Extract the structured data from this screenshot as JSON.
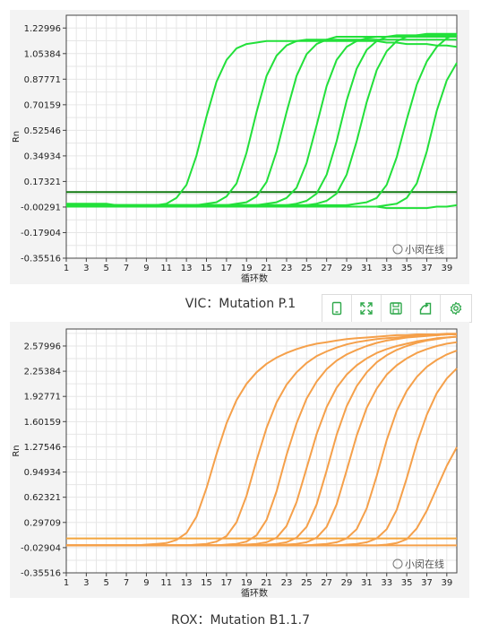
{
  "chart_data": [
    {
      "type": "line",
      "caption": "VIC：Mutation P.1",
      "xlabel": "循环数",
      "ylabel": "Rn",
      "x_ticks": [
        "1",
        "3",
        "5",
        "7",
        "9",
        "11",
        "13",
        "15",
        "17",
        "19",
        "21",
        "23",
        "25",
        "27",
        "29",
        "31",
        "33",
        "35",
        "37",
        "39"
      ],
      "y_ticks": [
        "1.22996",
        "1.05384",
        "0.87771",
        "0.70159",
        "0.52546",
        "0.34934",
        "0.17321",
        "-0.00291",
        "-0.17904",
        "-0.35516"
      ],
      "xlim": [
        1,
        40
      ],
      "ylim": [
        -0.35516,
        1.31802
      ],
      "grid": true,
      "color": "#22e03a",
      "threshold": {
        "value": 0.1,
        "color": "#127a12"
      },
      "series": [
        {
          "values": [
            0.0,
            0.0,
            0.0,
            0.0,
            0.0,
            0.0,
            0.0,
            0.0,
            0.01,
            0.01,
            0.02,
            0.06,
            0.15,
            0.35,
            0.62,
            0.86,
            1.01,
            1.09,
            1.12,
            1.13,
            1.14,
            1.14,
            1.14,
            1.14,
            1.14,
            1.14,
            1.14,
            1.14,
            1.14,
            1.14,
            1.14,
            1.14,
            1.13,
            1.13,
            1.12,
            1.12,
            1.12,
            1.11,
            1.11,
            1.1
          ]
        },
        {
          "values": [
            0.01,
            0.01,
            0.01,
            0.01,
            0.01,
            0.01,
            0.01,
            0.01,
            0.01,
            0.01,
            0.01,
            0.01,
            0.01,
            0.01,
            0.02,
            0.03,
            0.07,
            0.16,
            0.37,
            0.65,
            0.9,
            1.04,
            1.11,
            1.14,
            1.15,
            1.15,
            1.15,
            1.15,
            1.15,
            1.15,
            1.15,
            1.15,
            1.15,
            1.15,
            1.15,
            1.15,
            1.15,
            1.15,
            1.15,
            1.15
          ]
        },
        {
          "values": [
            0.02,
            0.02,
            0.02,
            0.02,
            0.02,
            0.01,
            0.01,
            0.01,
            0.01,
            0.01,
            0.01,
            0.01,
            0.01,
            0.01,
            0.01,
            0.01,
            0.01,
            0.02,
            0.03,
            0.07,
            0.17,
            0.38,
            0.65,
            0.9,
            1.05,
            1.12,
            1.15,
            1.17,
            1.17,
            1.17,
            1.17,
            1.17,
            1.17,
            1.17,
            1.17,
            1.17,
            1.17,
            1.17,
            1.17,
            1.17
          ]
        },
        {
          "values": [
            0.01,
            0.01,
            0.01,
            0.01,
            0.01,
            0.01,
            0.01,
            0.01,
            0.01,
            0.01,
            0.01,
            0.01,
            0.01,
            0.01,
            0.01,
            0.01,
            0.01,
            0.01,
            0.01,
            0.01,
            0.02,
            0.03,
            0.06,
            0.13,
            0.3,
            0.56,
            0.83,
            1.01,
            1.1,
            1.14,
            1.16,
            1.17,
            1.17,
            1.17,
            1.17,
            1.17,
            1.17,
            1.17,
            1.17,
            1.17
          ]
        },
        {
          "values": [
            0.01,
            0.01,
            0.01,
            0.01,
            0.01,
            0.01,
            0.01,
            0.01,
            0.01,
            0.01,
            0.01,
            0.01,
            0.01,
            0.01,
            0.01,
            0.01,
            0.01,
            0.01,
            0.01,
            0.01,
            0.01,
            0.01,
            0.01,
            0.02,
            0.04,
            0.09,
            0.22,
            0.45,
            0.73,
            0.95,
            1.08,
            1.14,
            1.17,
            1.18,
            1.18,
            1.18,
            1.18,
            1.18,
            1.18,
            1.18
          ]
        },
        {
          "values": [
            0.01,
            0.01,
            0.01,
            0.01,
            0.01,
            0.01,
            0.01,
            0.01,
            0.01,
            0.01,
            0.01,
            0.01,
            0.01,
            0.01,
            0.01,
            0.01,
            0.01,
            0.01,
            0.01,
            0.01,
            0.01,
            0.01,
            0.01,
            0.01,
            0.01,
            0.02,
            0.04,
            0.09,
            0.22,
            0.45,
            0.72,
            0.94,
            1.07,
            1.14,
            1.17,
            1.18,
            1.19,
            1.19,
            1.19,
            1.19
          ]
        },
        {
          "values": [
            0.01,
            0.01,
            0.01,
            0.01,
            0.01,
            0.01,
            0.01,
            0.01,
            0.01,
            0.01,
            0.01,
            0.01,
            0.01,
            0.01,
            0.01,
            0.01,
            0.01,
            0.01,
            0.01,
            0.01,
            0.01,
            0.01,
            0.01,
            0.01,
            0.01,
            0.01,
            0.01,
            0.01,
            0.01,
            0.02,
            0.03,
            0.06,
            0.15,
            0.34,
            0.6,
            0.84,
            1.0,
            1.1,
            1.16,
            1.19
          ]
        },
        {
          "values": [
            0.0,
            0.0,
            0.0,
            0.0,
            0.0,
            0.0,
            0.0,
            0.0,
            0.0,
            0.0,
            0.0,
            0.0,
            0.0,
            0.0,
            0.0,
            0.0,
            0.0,
            0.0,
            0.0,
            0.0,
            0.0,
            0.0,
            0.0,
            0.0,
            0.0,
            0.0,
            0.0,
            0.0,
            0.0,
            0.0,
            0.0,
            0.0,
            0.01,
            0.02,
            0.06,
            0.16,
            0.38,
            0.66,
            0.87,
            0.99
          ]
        },
        {
          "values": [
            0.01,
            0.01,
            0.01,
            0.0,
            0.0,
            0.0,
            0.0,
            0.0,
            0.0,
            0.0,
            0.0,
            0.0,
            0.0,
            0.0,
            0.0,
            0.0,
            0.0,
            0.0,
            0.0,
            0.0,
            0.0,
            0.0,
            0.0,
            0.0,
            0.0,
            0.0,
            0.0,
            0.0,
            0.0,
            0.0,
            0.0,
            0.0,
            -0.01,
            -0.01,
            -0.01,
            -0.01,
            -0.01,
            0.0,
            0.0,
            0.01
          ]
        }
      ]
    },
    {
      "type": "line",
      "caption": "ROX：Mutation B1.1.7",
      "xlabel": "循环数",
      "ylabel": "Rn",
      "x_ticks": [
        "1",
        "3",
        "5",
        "7",
        "9",
        "11",
        "13",
        "15",
        "17",
        "19",
        "21",
        "23",
        "25",
        "27",
        "29",
        "31",
        "33",
        "35",
        "37",
        "39"
      ],
      "y_ticks": [
        "2.57996",
        "2.25384",
        "1.92771",
        "1.60159",
        "1.27546",
        "0.94934",
        "0.62321",
        "0.29709",
        "-0.02904",
        "-0.35516"
      ],
      "xlim": [
        1,
        40
      ],
      "ylim": [
        -0.35516,
        2.8
      ],
      "grid": true,
      "color": "#f5a04a",
      "threshold": {
        "value": 0.09,
        "color": "#f3a53d"
      },
      "series": [
        {
          "values": [
            0.0,
            0.0,
            0.0,
            0.0,
            0.0,
            0.0,
            0.0,
            0.0,
            0.01,
            0.02,
            0.03,
            0.07,
            0.16,
            0.37,
            0.74,
            1.18,
            1.58,
            1.88,
            2.09,
            2.24,
            2.35,
            2.43,
            2.49,
            2.54,
            2.58,
            2.61,
            2.63,
            2.65,
            2.67,
            2.68,
            2.69,
            2.7,
            2.71,
            2.72,
            2.72,
            2.73,
            2.73,
            2.73,
            2.74,
            2.74
          ]
        },
        {
          "values": [
            0.0,
            0.0,
            0.0,
            0.0,
            0.0,
            0.0,
            0.0,
            0.0,
            0.0,
            0.0,
            0.0,
            0.0,
            0.0,
            0.01,
            0.02,
            0.05,
            0.12,
            0.3,
            0.64,
            1.1,
            1.52,
            1.85,
            2.08,
            2.24,
            2.36,
            2.45,
            2.51,
            2.56,
            2.6,
            2.63,
            2.65,
            2.67,
            2.68,
            2.69,
            2.7,
            2.71,
            2.72,
            2.72,
            2.73,
            2.73
          ]
        },
        {
          "values": [
            0.0,
            0.0,
            0.0,
            0.0,
            0.0,
            0.0,
            0.0,
            0.0,
            0.0,
            0.0,
            0.0,
            0.0,
            0.0,
            0.0,
            0.0,
            0.0,
            0.01,
            0.02,
            0.05,
            0.13,
            0.33,
            0.7,
            1.17,
            1.58,
            1.9,
            2.12,
            2.28,
            2.39,
            2.47,
            2.53,
            2.58,
            2.62,
            2.65,
            2.67,
            2.69,
            2.7,
            2.71,
            2.72,
            2.73,
            2.73
          ]
        },
        {
          "values": [
            0.0,
            0.0,
            0.0,
            0.0,
            0.0,
            0.0,
            0.0,
            0.0,
            0.0,
            0.0,
            0.0,
            0.0,
            0.0,
            0.0,
            0.0,
            0.0,
            0.0,
            0.0,
            0.01,
            0.02,
            0.04,
            0.1,
            0.25,
            0.56,
            1.0,
            1.44,
            1.79,
            2.04,
            2.21,
            2.33,
            2.42,
            2.49,
            2.54,
            2.58,
            2.61,
            2.64,
            2.66,
            2.68,
            2.69,
            2.7
          ]
        },
        {
          "values": [
            0.0,
            0.0,
            0.0,
            0.0,
            0.0,
            0.0,
            0.0,
            0.0,
            0.0,
            0.0,
            0.0,
            0.0,
            0.0,
            0.0,
            0.0,
            0.0,
            0.0,
            0.0,
            0.0,
            0.0,
            0.01,
            0.02,
            0.04,
            0.1,
            0.24,
            0.53,
            0.97,
            1.43,
            1.8,
            2.06,
            2.24,
            2.37,
            2.46,
            2.53,
            2.58,
            2.62,
            2.65,
            2.67,
            2.69,
            2.7
          ]
        },
        {
          "values": [
            0.0,
            0.0,
            0.0,
            0.0,
            0.0,
            0.0,
            0.0,
            0.0,
            0.0,
            0.0,
            0.0,
            0.0,
            0.0,
            0.0,
            0.0,
            0.0,
            0.0,
            0.0,
            0.0,
            0.0,
            0.0,
            0.0,
            0.01,
            0.02,
            0.04,
            0.1,
            0.24,
            0.53,
            0.97,
            1.42,
            1.78,
            2.03,
            2.21,
            2.33,
            2.42,
            2.49,
            2.54,
            2.58,
            2.61,
            2.63
          ]
        },
        {
          "values": [
            0.0,
            0.0,
            0.0,
            0.0,
            0.0,
            0.0,
            0.0,
            0.0,
            0.0,
            0.0,
            0.0,
            0.0,
            0.0,
            0.0,
            0.0,
            0.0,
            0.0,
            0.0,
            0.0,
            0.0,
            0.0,
            0.0,
            0.0,
            0.0,
            0.0,
            0.01,
            0.02,
            0.04,
            0.09,
            0.21,
            0.48,
            0.9,
            1.36,
            1.74,
            2.0,
            2.18,
            2.31,
            2.4,
            2.47,
            2.52
          ]
        },
        {
          "values": [
            0.0,
            0.0,
            0.0,
            0.0,
            0.0,
            0.0,
            0.0,
            0.0,
            0.0,
            0.0,
            0.0,
            0.0,
            0.0,
            0.0,
            0.0,
            0.0,
            0.0,
            0.0,
            0.0,
            0.0,
            0.0,
            0.0,
            0.0,
            0.0,
            0.0,
            0.0,
            0.0,
            0.0,
            0.01,
            0.02,
            0.04,
            0.09,
            0.21,
            0.46,
            0.87,
            1.32,
            1.69,
            1.97,
            2.16,
            2.29
          ]
        },
        {
          "values": [
            0.0,
            0.0,
            0.0,
            0.0,
            0.0,
            0.0,
            0.0,
            0.0,
            0.0,
            0.0,
            0.0,
            0.0,
            0.0,
            0.0,
            0.0,
            0.0,
            0.0,
            0.0,
            0.0,
            0.0,
            0.0,
            0.0,
            0.0,
            0.0,
            0.0,
            0.0,
            0.0,
            0.0,
            0.0,
            0.0,
            0.0,
            0.0,
            0.01,
            0.03,
            0.08,
            0.22,
            0.45,
            0.74,
            1.03,
            1.27
          ]
        },
        {
          "values": [
            0.0,
            0.0,
            0.0,
            0.0,
            0.0,
            0.0,
            0.0,
            0.0,
            0.0,
            0.0,
            0.0,
            0.0,
            0.0,
            0.0,
            0.0,
            0.0,
            0.0,
            0.0,
            0.0,
            0.0,
            0.0,
            0.0,
            0.0,
            0.0,
            0.0,
            0.0,
            0.0,
            0.0,
            0.0,
            0.0,
            0.0,
            0.0,
            0.0,
            0.0,
            0.0,
            0.0,
            0.0,
            0.0,
            0.0,
            0.0
          ]
        }
      ]
    }
  ],
  "watermark": "小闵在线",
  "toolbar": {
    "buttons": [
      {
        "icon": "tablet-icon"
      },
      {
        "icon": "expand-icon"
      },
      {
        "icon": "save-icon"
      },
      {
        "icon": "export-icon"
      },
      {
        "icon": "gear-icon"
      }
    ],
    "accent": "#2ea84a"
  }
}
